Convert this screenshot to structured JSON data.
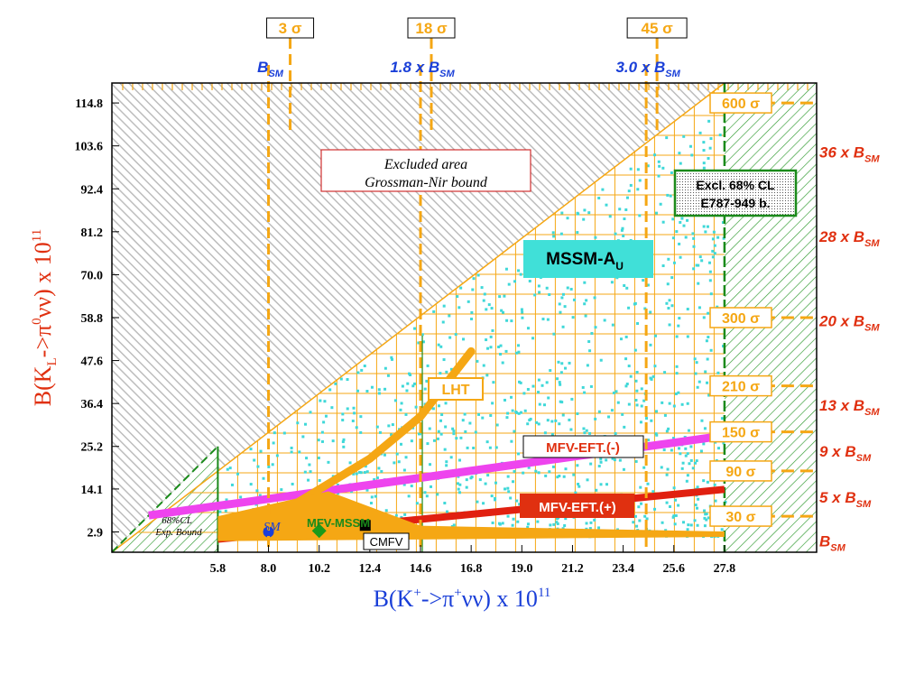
{
  "chart_data": {
    "type": "scatter",
    "xlabel_main": "B(K",
    "xlabel_sup1": "+",
    "xlabel_mid": "->π",
    "xlabel_sup2": "+",
    "xlabel_end": "νν) x 10",
    "xlabel_exp": "11",
    "ylabel_main": "B(K",
    "ylabel_sub": "L",
    "ylabel_mid": "->π",
    "ylabel_sup": "0",
    "ylabel_end": "νν) x 10",
    "ylabel_exp": "11",
    "xlim": [
      1.2,
      31.8
    ],
    "ylim": [
      -2.4,
      120
    ],
    "x_ticks": [
      "5.8",
      "8.0",
      "10.2",
      "12.4",
      "14.6",
      "16.8",
      "19.0",
      "21.2",
      "23.4",
      "25.6",
      "27.8"
    ],
    "x_tick_values": [
      5.8,
      8.0,
      10.2,
      12.4,
      14.6,
      16.8,
      19.0,
      21.2,
      23.4,
      25.6,
      27.8
    ],
    "y_ticks": [
      "2.9",
      "14.1",
      "25.2",
      "36.4",
      "47.6",
      "58.8",
      "70.0",
      "81.2",
      "92.4",
      "103.6",
      "114.8"
    ],
    "y_tick_values": [
      2.9,
      14.1,
      25.2,
      36.4,
      47.6,
      58.8,
      70.0,
      81.2,
      92.4,
      103.6,
      114.8
    ],
    "top_labels": [
      {
        "x": 8.0,
        "text": "B",
        "sub": "SM",
        "sigma": "3 σ"
      },
      {
        "x": 14.6,
        "text": "1.8 x B",
        "sub": "SM",
        "sigma": "18 σ"
      },
      {
        "x": 24.4,
        "text": "3.0 x B",
        "sub": "SM",
        "sigma": "45 σ"
      }
    ],
    "right_sigma": [
      {
        "y": 114.8,
        "text": "600 σ"
      },
      {
        "y": 58.8,
        "text": "300 σ"
      },
      {
        "y": 41.0,
        "text": "210 σ"
      },
      {
        "y": 29.0,
        "text": "150 σ"
      },
      {
        "y": 18.8,
        "text": "90 σ"
      },
      {
        "y": 7.0,
        "text": "30 σ"
      }
    ],
    "right_bsm": [
      {
        "y": 102.0,
        "text": "36 x B",
        "sub": "SM"
      },
      {
        "y": 80.0,
        "text": "28 x B",
        "sub": "SM"
      },
      {
        "y": 58.0,
        "text": "20 x B",
        "sub": "SM"
      },
      {
        "y": 36.0,
        "text": "13 x B",
        "sub": "SM"
      },
      {
        "y": 24.0,
        "text": "9 x B",
        "sub": "SM"
      },
      {
        "y": 12.0,
        "text": "5 x B",
        "sub": "SM"
      },
      {
        "y": 0.5,
        "text": "B",
        "sub": "SM"
      }
    ],
    "annotations": {
      "excluded_line1": "Excluded  area",
      "excluded_line2": "Grossman-Nir bound",
      "excl_line1": "Excl.  68% CL",
      "excl_line2": "E787-949 b.",
      "mssm": "MSSM-A",
      "mssm_sub": "U",
      "lht": "LHT",
      "mfv_minus": "MFV-EFT.(-)",
      "mfv_plus": "MFV-EFT.(+)",
      "mfv_mssm": "MFV-MSSM",
      "cmfv": "CMFV",
      "sm": "SM",
      "cl_line1": "68%CL",
      "cl_line2": "Exp. Bound"
    },
    "points": [
      {
        "name": "SM",
        "x": 8.0,
        "y": 2.9
      },
      {
        "name": "MFV-MSSM",
        "x": 10.2,
        "y": 3.2
      },
      {
        "name": "CMFV",
        "x": 12.2,
        "y": 4.6
      }
    ],
    "series": [
      {
        "name": "MFV-EFT.(-)",
        "x": [
          2.8,
          27.8
        ],
        "y": [
          7.2,
          28.0
        ]
      },
      {
        "name": "MFV-EFT.(+)",
        "x": [
          5.8,
          27.8
        ],
        "y": [
          1.0,
          14.0
        ]
      },
      {
        "name": "LHT",
        "x": [
          8.0,
          10.2,
          12.4,
          14.6,
          16.8
        ],
        "y": [
          6.0,
          14.0,
          22.0,
          33.0,
          50.0
        ]
      }
    ],
    "grossman_nir_bound": {
      "x": [
        1.2,
        27.8
      ],
      "y": [
        -2.4,
        120.0
      ]
    },
    "exp_bound_x": [
      5.8,
      27.8
    ],
    "colors": {
      "orange": "#f5a714",
      "green": "#1a8a1a",
      "cyan": "#3fd8d8",
      "magenta": "#ee44ee",
      "red": "#e12010",
      "blue_label": "#1a3fd8",
      "red_label": "#e03010",
      "hatch_gray": "#b8b8b8"
    }
  }
}
